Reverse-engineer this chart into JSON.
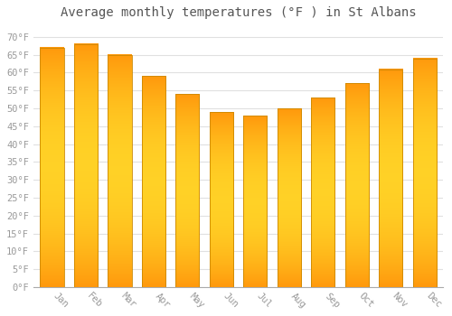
{
  "months": [
    "Jan",
    "Feb",
    "Mar",
    "Apr",
    "May",
    "Jun",
    "Jul",
    "Aug",
    "Sep",
    "Oct",
    "Nov",
    "Dec"
  ],
  "values": [
    67,
    68,
    65,
    59,
    54,
    49,
    48,
    50,
    53,
    57,
    61,
    64
  ],
  "bar_color_main": "#FFA500",
  "bar_color_bright": "#FFD040",
  "bar_color_edge": "#CC8800",
  "title": "Average monthly temperatures (°F ) in St Albans",
  "ylim": [
    0,
    73
  ],
  "yticks": [
    0,
    5,
    10,
    15,
    20,
    25,
    30,
    35,
    40,
    45,
    50,
    55,
    60,
    65,
    70
  ],
  "ytick_labels": [
    "0°F",
    "5°F",
    "10°F",
    "15°F",
    "20°F",
    "25°F",
    "30°F",
    "35°F",
    "40°F",
    "45°F",
    "50°F",
    "55°F",
    "60°F",
    "65°F",
    "70°F"
  ],
  "background_color": "#FFFFFF",
  "grid_color": "#E0E0E0",
  "title_fontsize": 10,
  "tick_fontsize": 7.5,
  "bar_width": 0.7,
  "tick_color": "#999999",
  "title_color": "#555555"
}
